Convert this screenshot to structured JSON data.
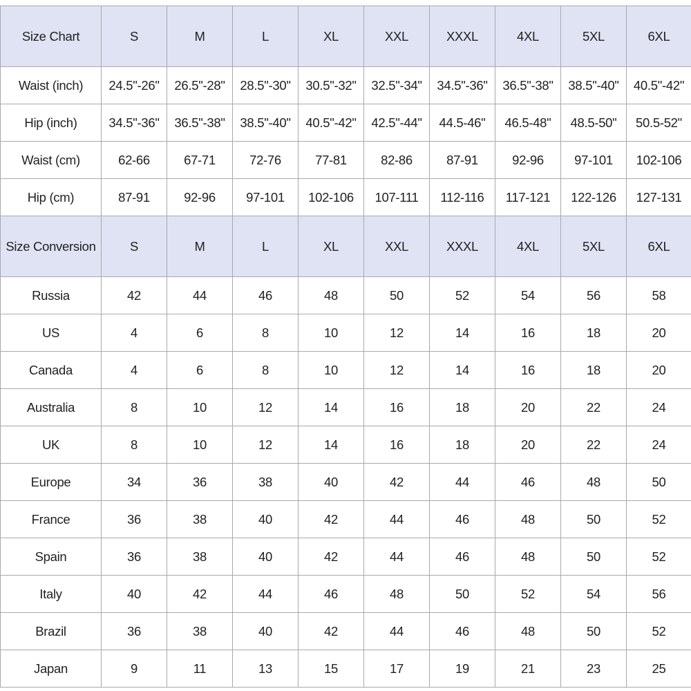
{
  "size_chart": {
    "header": [
      "Size Chart",
      "S",
      "M",
      "L",
      "XL",
      "XXL",
      "XXXL",
      "4XL",
      "5XL",
      "6XL"
    ],
    "rows": [
      [
        "Waist (inch)",
        "24.5\"-26\"",
        "26.5\"-28\"",
        "28.5\"-30\"",
        "30.5\"-32\"",
        "32.5\"-34\"",
        "34.5\"-36\"",
        "36.5\"-38\"",
        "38.5\"-40\"",
        "40.5\"-42\""
      ],
      [
        "Hip (inch)",
        "34.5\"-36\"",
        "36.5\"-38\"",
        "38.5\"-40\"",
        "40.5\"-42\"",
        "42.5\"-44\"",
        "44.5-46\"",
        "46.5-48\"",
        "48.5-50\"",
        "50.5-52\""
      ],
      [
        "Waist (cm)",
        "62-66",
        "67-71",
        "72-76",
        "77-81",
        "82-86",
        "87-91",
        "92-96",
        "97-101",
        "102-106"
      ],
      [
        "Hip (cm)",
        "87-91",
        "92-96",
        "97-101",
        "102-106",
        "107-111",
        "112-116",
        "117-121",
        "122-126",
        "127-131"
      ]
    ]
  },
  "size_conversion": {
    "header": [
      "Size Conversion",
      "S",
      "M",
      "L",
      "XL",
      "XXL",
      "XXXL",
      "4XL",
      "5XL",
      "6XL"
    ],
    "rows": [
      [
        "Russia",
        "42",
        "44",
        "46",
        "48",
        "50",
        "52",
        "54",
        "56",
        "58"
      ],
      [
        "US",
        "4",
        "6",
        "8",
        "10",
        "12",
        "14",
        "16",
        "18",
        "20"
      ],
      [
        "Canada",
        "4",
        "6",
        "8",
        "10",
        "12",
        "14",
        "16",
        "18",
        "20"
      ],
      [
        "Australia",
        "8",
        "10",
        "12",
        "14",
        "16",
        "18",
        "20",
        "22",
        "24"
      ],
      [
        "UK",
        "8",
        "10",
        "12",
        "14",
        "16",
        "18",
        "20",
        "22",
        "24"
      ],
      [
        "Europe",
        "34",
        "36",
        "38",
        "40",
        "42",
        "44",
        "46",
        "48",
        "50"
      ],
      [
        "France",
        "36",
        "38",
        "40",
        "42",
        "44",
        "46",
        "48",
        "50",
        "52"
      ],
      [
        "Spain",
        "36",
        "38",
        "40",
        "42",
        "44",
        "46",
        "48",
        "50",
        "52"
      ],
      [
        "Italy",
        "40",
        "42",
        "44",
        "46",
        "48",
        "50",
        "52",
        "54",
        "56"
      ],
      [
        "Brazil",
        "36",
        "38",
        "40",
        "42",
        "44",
        "46",
        "48",
        "50",
        "52"
      ],
      [
        "Japan",
        "9",
        "11",
        "13",
        "15",
        "17",
        "19",
        "21",
        "23",
        "25"
      ]
    ]
  }
}
